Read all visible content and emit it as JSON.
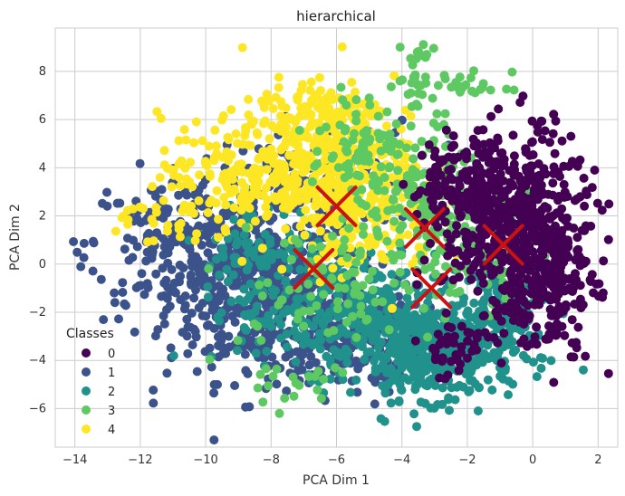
{
  "chart_data": {
    "type": "scatter",
    "title": "hierarchical",
    "xlabel": "PCA Dim 1",
    "ylabel": "PCA Dim 2",
    "xlim": [
      -14.6,
      2.6
    ],
    "ylim": [
      -7.6,
      9.8
    ],
    "xticks": [
      -14,
      -12,
      -10,
      -8,
      -6,
      -4,
      -2,
      0,
      2
    ],
    "yticks": [
      -6,
      -4,
      -2,
      0,
      2,
      4,
      6,
      8
    ],
    "xtick_labels": [
      "−14",
      "−12",
      "−10",
      "−8",
      "−6",
      "−4",
      "−2",
      "0",
      "2"
    ],
    "ytick_labels": [
      "−6",
      "−4",
      "−2",
      "0",
      "2",
      "4",
      "6",
      "8"
    ],
    "grid": true,
    "legend": {
      "title": "Classes",
      "position": "lower-left",
      "entries": [
        "0",
        "1",
        "2",
        "3",
        "4"
      ]
    },
    "series": [
      {
        "name": "0",
        "color": "#440154",
        "clusters": [
          {
            "cx": -0.5,
            "cy": 1.5,
            "sx": 1.1,
            "sy": 2.0,
            "n": 520
          },
          {
            "cx": -1.8,
            "cy": 3.2,
            "sx": 1.0,
            "sy": 1.0,
            "n": 160
          },
          {
            "cx": 0.5,
            "cy": -0.8,
            "sx": 0.7,
            "sy": 1.4,
            "n": 160
          },
          {
            "cx": -2.4,
            "cy": -3.5,
            "sx": 0.6,
            "sy": 0.6,
            "n": 40
          }
        ]
      },
      {
        "name": "1",
        "color": "#3b528b",
        "clusters": [
          {
            "cx": -8.2,
            "cy": -1.2,
            "sx": 1.5,
            "sy": 1.8,
            "n": 480
          },
          {
            "cx": -10.8,
            "cy": 0.8,
            "sx": 1.4,
            "sy": 1.5,
            "n": 220
          },
          {
            "cx": -5.8,
            "cy": -3.0,
            "sx": 1.2,
            "sy": 1.2,
            "n": 180
          },
          {
            "cx": -6.5,
            "cy": 3.5,
            "sx": 1.5,
            "sy": 1.2,
            "n": 110
          }
        ]
      },
      {
        "name": "2",
        "color": "#21918c",
        "clusters": [
          {
            "cx": -3.0,
            "cy": -3.6,
            "sx": 1.2,
            "sy": 1.0,
            "n": 450
          },
          {
            "cx": -6.0,
            "cy": -2.0,
            "sx": 1.5,
            "sy": 1.2,
            "n": 260
          },
          {
            "cx": -1.0,
            "cy": -1.8,
            "sx": 0.9,
            "sy": 1.2,
            "n": 110
          },
          {
            "cx": -8.2,
            "cy": 0.6,
            "sx": 1.0,
            "sy": 1.0,
            "n": 90
          }
        ]
      },
      {
        "name": "3",
        "color": "#5ec962",
        "clusters": [
          {
            "cx": -3.6,
            "cy": 2.4,
            "sx": 1.1,
            "sy": 2.0,
            "n": 180
          },
          {
            "cx": -1.5,
            "cy": 0.8,
            "sx": 1.0,
            "sy": 1.4,
            "n": 120
          },
          {
            "cx": -5.4,
            "cy": 5.3,
            "sx": 0.9,
            "sy": 0.8,
            "n": 60
          },
          {
            "cx": -3.5,
            "cy": 7.7,
            "sx": 0.2,
            "sy": 0.6,
            "n": 26
          },
          {
            "cx": -1.8,
            "cy": 7.4,
            "sx": 0.6,
            "sy": 0.3,
            "n": 22
          },
          {
            "cx": -6.5,
            "cy": -1.2,
            "sx": 1.4,
            "sy": 1.4,
            "n": 70
          },
          {
            "cx": -7.5,
            "cy": -5.0,
            "sx": 1.0,
            "sy": 0.5,
            "n": 18
          }
        ]
      },
      {
        "name": "4",
        "color": "#fde725",
        "clusters": [
          {
            "cx": -6.3,
            "cy": 4.0,
            "sx": 1.3,
            "sy": 1.4,
            "n": 400
          },
          {
            "cx": -9.0,
            "cy": 3.8,
            "sx": 1.2,
            "sy": 1.2,
            "n": 150
          },
          {
            "cx": -5.0,
            "cy": 1.8,
            "sx": 1.1,
            "sy": 1.2,
            "n": 130
          },
          {
            "cx": -11.6,
            "cy": 1.9,
            "sx": 0.8,
            "sy": 0.5,
            "n": 30
          },
          {
            "cx": -6.3,
            "cy": 6.5,
            "sx": 1.0,
            "sy": 0.6,
            "n": 80
          }
        ]
      }
    ],
    "centroids": {
      "color": "#cc1111",
      "marker": "x",
      "points": [
        {
          "x": -6.0,
          "y": 2.4
        },
        {
          "x": -3.3,
          "y": 1.5
        },
        {
          "x": -0.9,
          "y": 0.8
        },
        {
          "x": -6.7,
          "y": -0.2
        },
        {
          "x": -3.1,
          "y": -1.0
        }
      ]
    }
  }
}
